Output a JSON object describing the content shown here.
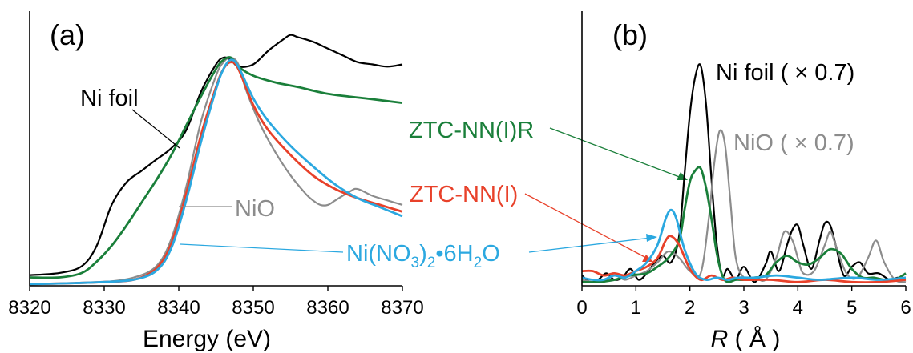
{
  "figure": {
    "colors": {
      "Ni foil": "#000000",
      "NiO": "#8c8c8c",
      "ZTC-NN(I)R": "#1a7f3a",
      "ZTC-NN(I)": "#e8412a",
      "Ni(NO3)2·6H2O": "#2ba8e0"
    }
  },
  "chart_data": [
    {
      "type": "line",
      "panel_label": "(a)",
      "xlabel": "Energy (eV)",
      "ylabel": "",
      "xlim": [
        8320,
        8370
      ],
      "xticks": [
        "8320",
        "8330",
        "8340",
        "8350",
        "8360",
        "8370"
      ],
      "y_tick_labels": false,
      "grid": false,
      "labels": {
        "ni_foil": "Ni foil",
        "nio": "NiO",
        "ztc_r": "ZTC-NN(I)R",
        "ztc": "ZTC-NN(I)",
        "nitrate_pre": "Ni(NO",
        "nitrate_sub1": "3",
        "nitrate_mid": ")",
        "nitrate_sub2": "2",
        "nitrate_dot": "•",
        "nitrate_post": "6H",
        "nitrate_sub3": "2",
        "nitrate_end": "O"
      },
      "series": [
        {
          "name": "Ni foil",
          "color": "#000000",
          "x": [
            8320,
            8324,
            8327,
            8329,
            8331,
            8333,
            8335,
            8337,
            8339,
            8341,
            8343,
            8345,
            8346,
            8347,
            8348,
            8350,
            8352,
            8354,
            8355,
            8356,
            8358,
            8360,
            8362,
            8364,
            8366,
            8368,
            8370
          ],
          "y": [
            0.04,
            0.05,
            0.08,
            0.17,
            0.35,
            0.45,
            0.5,
            0.55,
            0.6,
            0.68,
            0.85,
            0.97,
            1.0,
            0.99,
            0.96,
            0.97,
            1.03,
            1.08,
            1.1,
            1.09,
            1.07,
            1.04,
            1.01,
            0.98,
            0.97,
            0.96,
            0.97
          ]
        },
        {
          "name": "NiO",
          "color": "#8c8c8c",
          "x": [
            8320,
            8326,
            8330,
            8334,
            8337,
            8339,
            8341,
            8343,
            8345,
            8346,
            8347,
            8348,
            8349,
            8351,
            8353,
            8355,
            8357,
            8358,
            8359,
            8360,
            8361,
            8363,
            8364,
            8366,
            8368,
            8370
          ],
          "y": [
            0.0,
            0.005,
            0.01,
            0.03,
            0.08,
            0.2,
            0.43,
            0.72,
            0.92,
            0.98,
            1.0,
            0.97,
            0.86,
            0.7,
            0.58,
            0.48,
            0.4,
            0.37,
            0.35,
            0.35,
            0.37,
            0.41,
            0.42,
            0.39,
            0.37,
            0.35
          ]
        },
        {
          "name": "ZTC-NN(I)R",
          "color": "#1a7f3a",
          "x": [
            8320,
            8324,
            8327,
            8329,
            8331,
            8333,
            8335,
            8337,
            8339,
            8341,
            8343,
            8345,
            8346,
            8347,
            8348,
            8350,
            8353,
            8356,
            8360,
            8365,
            8370
          ],
          "y": [
            0.03,
            0.03,
            0.05,
            0.1,
            0.17,
            0.26,
            0.36,
            0.46,
            0.57,
            0.7,
            0.83,
            0.95,
            0.99,
            1.0,
            0.96,
            0.92,
            0.89,
            0.87,
            0.84,
            0.82,
            0.8
          ]
        },
        {
          "name": "ZTC-NN(I)",
          "color": "#e8412a",
          "x": [
            8320,
            8326,
            8330,
            8334,
            8337,
            8339,
            8341,
            8343,
            8345,
            8346,
            8347,
            8348,
            8350,
            8352,
            8355,
            8358,
            8361,
            8364,
            8367,
            8370
          ],
          "y": [
            0.0,
            0.005,
            0.01,
            0.02,
            0.07,
            0.18,
            0.4,
            0.66,
            0.87,
            0.95,
            0.98,
            0.95,
            0.79,
            0.68,
            0.57,
            0.48,
            0.42,
            0.38,
            0.35,
            0.32
          ]
        },
        {
          "name": "Ni(NO3)2·6H2O",
          "color": "#2ba8e0",
          "x": [
            8320,
            8326,
            8330,
            8334,
            8337,
            8339,
            8341,
            8343,
            8345,
            8346,
            8347,
            8348,
            8350,
            8352,
            8355,
            8358,
            8361,
            8364,
            8367,
            8370
          ],
          "y": [
            0.0,
            0.005,
            0.01,
            0.02,
            0.06,
            0.16,
            0.37,
            0.63,
            0.86,
            0.95,
            0.99,
            0.96,
            0.82,
            0.72,
            0.61,
            0.52,
            0.44,
            0.38,
            0.34,
            0.3
          ]
        }
      ]
    },
    {
      "type": "line",
      "panel_label": "(b)",
      "xlabel_italic": "R",
      "xlabel_rest": " ( Å )",
      "ylabel": "",
      "xlim": [
        0,
        6
      ],
      "xticks": [
        "0",
        "1",
        "2",
        "3",
        "4",
        "5",
        "6"
      ],
      "y_tick_labels": false,
      "grid": false,
      "labels": {
        "ni_foil": "Ni foil ( × 0.7)",
        "nio": "NiO ( × 0.7)"
      },
      "series": [
        {
          "name": "Ni foil ( × 0.7)",
          "color": "#000000",
          "x": [
            0,
            0.15,
            0.3,
            0.45,
            0.6,
            0.75,
            0.9,
            1.05,
            1.2,
            1.35,
            1.5,
            1.65,
            1.8,
            1.9,
            2.0,
            2.1,
            2.2,
            2.3,
            2.4,
            2.5,
            2.6,
            2.7,
            2.85,
            3.0,
            3.2,
            3.4,
            3.5,
            3.65,
            3.8,
            3.9,
            4.0,
            4.1,
            4.25,
            4.4,
            4.5,
            4.6,
            4.7,
            4.85,
            5.0,
            5.15,
            5.3,
            5.5,
            5.7,
            5.85,
            6.0
          ],
          "y": [
            0.04,
            0.01,
            0.02,
            0.05,
            0.02,
            0.03,
            0.07,
            0.02,
            0.05,
            0.1,
            0.13,
            0.1,
            0.22,
            0.5,
            0.78,
            0.95,
            1.0,
            0.82,
            0.48,
            0.18,
            0.04,
            0.07,
            0.02,
            0.08,
            0.01,
            0.09,
            0.15,
            0.06,
            0.18,
            0.25,
            0.27,
            0.18,
            0.07,
            0.2,
            0.28,
            0.27,
            0.18,
            0.04,
            0.08,
            0.1,
            0.05,
            0.05,
            0.02,
            0.03,
            0.02
          ]
        },
        {
          "name": "NiO ( × 0.7)",
          "color": "#8c8c8c",
          "x": [
            0,
            0.2,
            0.4,
            0.6,
            0.8,
            1.0,
            1.2,
            1.4,
            1.6,
            1.8,
            2.0,
            2.2,
            2.35,
            2.45,
            2.55,
            2.65,
            2.75,
            2.85,
            3.0,
            3.2,
            3.4,
            3.6,
            3.75,
            3.9,
            4.0,
            4.1,
            4.3,
            4.5,
            4.6,
            4.7,
            4.9,
            5.1,
            5.3,
            5.45,
            5.6,
            5.8,
            6.0
          ],
          "y": [
            0.02,
            0.01,
            0.01,
            0.04,
            0.02,
            0.04,
            0.06,
            0.1,
            0.15,
            0.12,
            0.06,
            0.05,
            0.3,
            0.55,
            0.7,
            0.64,
            0.38,
            0.12,
            0.03,
            0.03,
            0.02,
            0.12,
            0.24,
            0.2,
            0.12,
            0.05,
            0.06,
            0.18,
            0.24,
            0.18,
            0.05,
            0.03,
            0.12,
            0.2,
            0.1,
            0.02,
            0.01
          ]
        },
        {
          "name": "ZTC-NN(I)R",
          "color": "#1a7f3a",
          "x": [
            0,
            0.3,
            0.6,
            0.9,
            1.2,
            1.4,
            1.6,
            1.8,
            1.9,
            2.0,
            2.1,
            2.2,
            2.3,
            2.4,
            2.5,
            2.6,
            2.7,
            2.85,
            3.0,
            3.2,
            3.4,
            3.6,
            3.8,
            4.0,
            4.2,
            4.4,
            4.6,
            4.8,
            5.0,
            5.2,
            5.4,
            5.6,
            5.8,
            6.0
          ],
          "y": [
            0.01,
            0.01,
            0.02,
            0.04,
            0.05,
            0.08,
            0.12,
            0.2,
            0.34,
            0.47,
            0.52,
            0.53,
            0.44,
            0.3,
            0.14,
            0.04,
            0.01,
            0.02,
            0.02,
            0.03,
            0.04,
            0.1,
            0.13,
            0.1,
            0.09,
            0.12,
            0.16,
            0.14,
            0.07,
            0.03,
            0.03,
            0.02,
            0.02,
            0.05
          ]
        },
        {
          "name": "ZTC-NN(I)",
          "color": "#e8412a",
          "x": [
            0,
            0.2,
            0.4,
            0.6,
            0.8,
            1.0,
            1.2,
            1.4,
            1.55,
            1.65,
            1.8,
            2.0,
            2.2,
            2.4,
            2.6,
            2.8,
            3.0,
            3.5,
            4.0,
            4.5,
            5.0,
            5.5,
            6.0
          ],
          "y": [
            0.06,
            0.06,
            0.04,
            0.05,
            0.04,
            0.06,
            0.08,
            0.12,
            0.2,
            0.22,
            0.18,
            0.07,
            0.02,
            0.04,
            0.02,
            0.03,
            0.02,
            0.02,
            0.01,
            0.02,
            0.01,
            0.01,
            0.02
          ]
        },
        {
          "name": "Ni(NO3)2·6H2O",
          "color": "#2ba8e0",
          "x": [
            0,
            0.2,
            0.4,
            0.6,
            0.8,
            1.0,
            1.2,
            1.4,
            1.55,
            1.65,
            1.75,
            1.9,
            2.1,
            2.3,
            2.5,
            2.7,
            2.9,
            3.2,
            3.6,
            4.0,
            4.4,
            5.0,
            5.5,
            6.0
          ],
          "y": [
            0.03,
            0.02,
            0.02,
            0.04,
            0.03,
            0.06,
            0.1,
            0.18,
            0.3,
            0.34,
            0.3,
            0.16,
            0.05,
            0.02,
            0.03,
            0.02,
            0.03,
            0.03,
            0.04,
            0.03,
            0.02,
            0.03,
            0.02,
            0.03
          ]
        }
      ]
    }
  ]
}
